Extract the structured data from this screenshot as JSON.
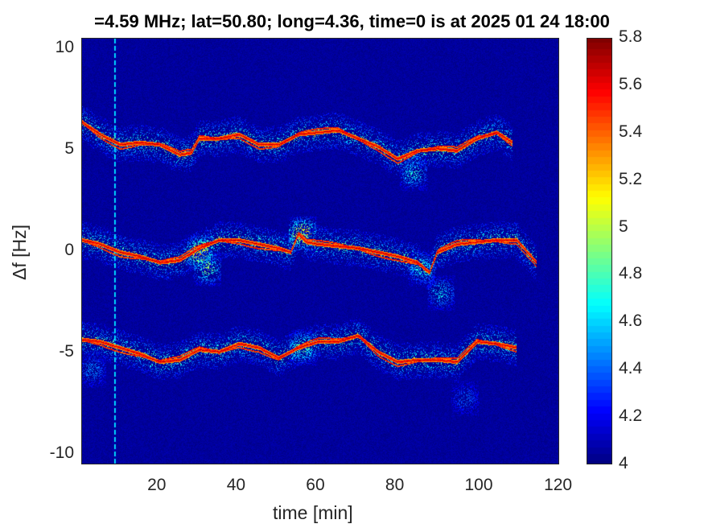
{
  "title": "=4.59 MHz;  lat=50.80; long=4.36, time=0 is at 2025 01 24 18:00",
  "chart_data": {
    "type": "heatmap",
    "title": "=4.59 MHz;  lat=50.80; long=4.36, time=0 is at 2025 01 24 18:00",
    "xlabel": "time [min]",
    "ylabel": "Δf [Hz]",
    "xlim": [
      0.5,
      121
    ],
    "ylim": [
      -10.5,
      10.5
    ],
    "x_ticks": [
      20,
      40,
      60,
      80,
      100,
      120
    ],
    "y_ticks": [
      -10,
      -5,
      0,
      5,
      10
    ],
    "colormap": "jet",
    "clim": [
      4,
      5.8
    ],
    "colorbar_ticks": [
      "4",
      "4.2",
      "4.4",
      "4.6",
      "4.8",
      "5",
      "5.2",
      "5.4",
      "5.6",
      "5.8"
    ],
    "background_value": 4.05,
    "vertical_line_time": 8.6,
    "traces": [
      {
        "name": "upper",
        "time": [
          0.5,
          5,
          10,
          15,
          20,
          25,
          28,
          30,
          35,
          40,
          45,
          50,
          55,
          60,
          65,
          70,
          75,
          80,
          85,
          90,
          95,
          100,
          105,
          109
        ],
        "df": [
          6.4,
          5.8,
          5.3,
          5.4,
          5.3,
          4.8,
          4.9,
          5.6,
          5.6,
          5.8,
          5.3,
          5.3,
          5.8,
          5.9,
          6.0,
          5.6,
          5.2,
          4.6,
          5.0,
          5.1,
          5.0,
          5.6,
          5.9,
          5.4
        ]
      },
      {
        "name": "middle",
        "time": [
          0.5,
          5,
          10,
          15,
          20,
          25,
          30,
          35,
          40,
          45,
          50,
          53,
          55,
          57,
          60,
          65,
          70,
          75,
          80,
          85,
          88,
          90,
          95,
          100,
          105,
          110,
          115
        ],
        "df": [
          0.6,
          0.4,
          0.0,
          -0.2,
          -0.5,
          -0.4,
          0.2,
          0.6,
          0.6,
          0.4,
          0.2,
          0.0,
          0.9,
          0.5,
          0.4,
          0.3,
          0.2,
          0.0,
          -0.2,
          -0.5,
          -1.0,
          0.0,
          0.4,
          0.5,
          0.6,
          0.6,
          -0.5
        ]
      },
      {
        "name": "lower",
        "time": [
          0.5,
          5,
          10,
          15,
          20,
          25,
          30,
          35,
          40,
          45,
          50,
          55,
          60,
          65,
          70,
          75,
          80,
          85,
          90,
          95,
          100,
          105,
          110
        ],
        "df": [
          -4.3,
          -4.4,
          -4.7,
          -5.0,
          -5.4,
          -5.3,
          -4.8,
          -4.9,
          -4.5,
          -4.7,
          -5.2,
          -4.7,
          -4.4,
          -4.4,
          -4.1,
          -4.9,
          -5.4,
          -5.3,
          -5.3,
          -5.4,
          -4.4,
          -4.5,
          -4.7
        ]
      }
    ],
    "blobs": [
      {
        "time": 30,
        "df": 0.0,
        "value": 5.5
      },
      {
        "time": 56,
        "df": 0.9,
        "value": 5.6
      },
      {
        "time": 32,
        "df": -0.8,
        "value": 5.1
      },
      {
        "time": 86,
        "df": -0.8,
        "value": 4.9
      },
      {
        "time": 91,
        "df": -2.0,
        "value": 4.8
      },
      {
        "time": 84,
        "df": 3.9,
        "value": 4.9
      },
      {
        "time": 56,
        "df": -4.7,
        "value": 5.1
      },
      {
        "time": 97,
        "df": -7.2,
        "value": 4.5
      },
      {
        "time": 3,
        "df": -5.8,
        "value": 4.6
      }
    ]
  }
}
